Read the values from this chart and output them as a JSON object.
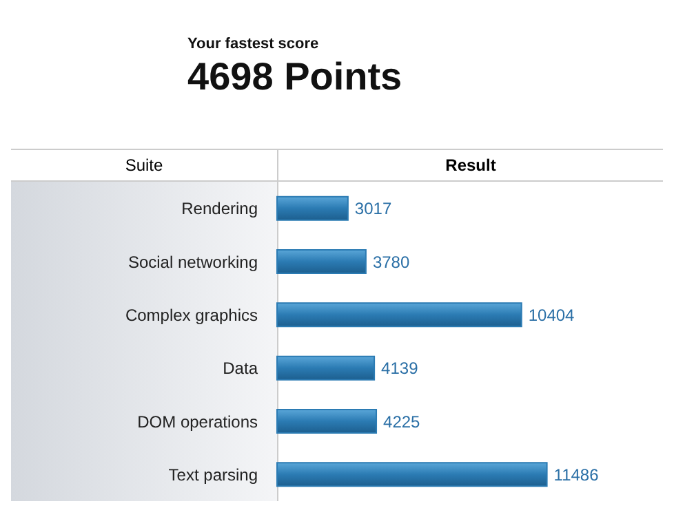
{
  "chart_data": {
    "type": "bar",
    "orientation": "horizontal",
    "title": "Your fastest score",
    "subtitle": "4698 Points",
    "ylabel": "Suite",
    "xlabel": "Result",
    "categories": [
      "Rendering",
      "Social networking",
      "Complex graphics",
      "Data",
      "DOM operations",
      "Text parsing"
    ],
    "values": [
      3017,
      3780,
      10404,
      4139,
      4225,
      11486
    ],
    "color": "#2b7bb3",
    "data_labels": true
  }
}
